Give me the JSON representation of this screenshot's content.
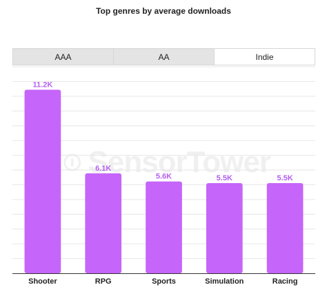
{
  "tabs": [
    {
      "label": "AAA",
      "active": false
    },
    {
      "label": "AA",
      "active": false
    },
    {
      "label": "Indie",
      "active": true
    }
  ],
  "watermark": {
    "text": "SensorTower"
  },
  "colors": {
    "bar": "#c565fa",
    "value_label": "#b45ff0",
    "grid": "#e6e6e6",
    "axis": "#333333"
  },
  "chart_data": {
    "type": "bar",
    "title": "Top genres by average downloads",
    "xlabel": "",
    "ylabel": "",
    "categories": [
      "Shooter",
      "RPG",
      "Sports",
      "Simulation",
      "Racing"
    ],
    "values": [
      11.2,
      6.1,
      5.6,
      5.5,
      5.5
    ],
    "value_labels": [
      "11.2K",
      "6.1K",
      "5.6K",
      "5.5K",
      "5.5K"
    ],
    "unit": "K",
    "ylim": [
      0,
      12.6
    ],
    "grid": true,
    "legend": "none"
  }
}
